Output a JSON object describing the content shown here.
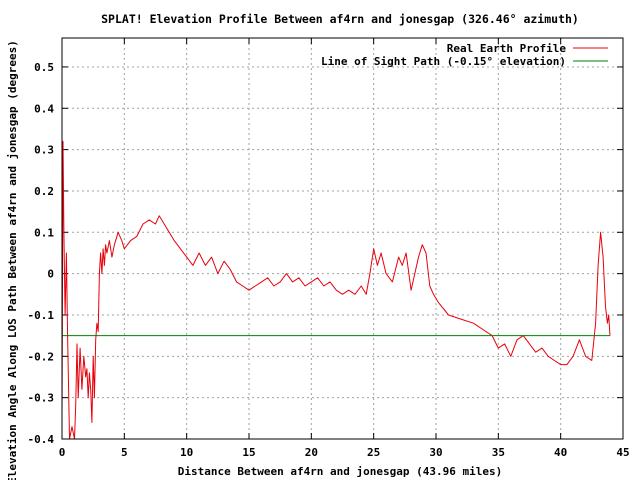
{
  "chart_data": {
    "type": "line",
    "title": "SPLAT! Elevation Profile Between af4rn and jonesgap (326.46° azimuth)",
    "xlabel": "Distance Between af4rn and jonesgap (43.96 miles)",
    "ylabel": "Elevation Angle Along LOS Path Between af4rn and jonesgap (degrees)",
    "xlim": [
      0,
      45
    ],
    "ylim": [
      -0.4,
      0.57
    ],
    "x_ticks": [
      0,
      5,
      10,
      15,
      20,
      25,
      30,
      35,
      40,
      45
    ],
    "y_ticks": [
      -0.4,
      -0.3,
      -0.2,
      -0.1,
      0,
      0.1,
      0.2,
      0.3,
      0.4,
      0.5
    ],
    "x_tick_labels": [
      "0",
      "5",
      "10",
      "15",
      "20",
      "25",
      "30",
      "35",
      "40",
      "45"
    ],
    "y_tick_labels": [
      "-0.4",
      "-0.3",
      "-0.2",
      "-0.1",
      "0",
      "0.1",
      "0.2",
      "0.3",
      "0.4",
      "0.5"
    ],
    "grid": true,
    "legend_position": "top-right",
    "series": [
      {
        "name": "Real Earth Profile",
        "color": "#e8000b",
        "x": [
          0,
          0.08,
          0.15,
          0.25,
          0.35,
          0.45,
          0.6,
          0.8,
          1.0,
          1.1,
          1.2,
          1.3,
          1.45,
          1.6,
          1.75,
          1.9,
          2.0,
          2.1,
          2.2,
          2.3,
          2.4,
          2.5,
          2.6,
          2.7,
          2.8,
          2.9,
          3.0,
          3.1,
          3.2,
          3.3,
          3.4,
          3.5,
          3.6,
          3.8,
          4.0,
          4.2,
          4.5,
          4.8,
          5.0,
          5.5,
          6.0,
          6.5,
          7.0,
          7.5,
          7.8,
          8.2,
          8.6,
          9.0,
          9.5,
          10.0,
          10.5,
          11.0,
          11.5,
          12.0,
          12.5,
          13.0,
          13.5,
          14.0,
          14.5,
          15.0,
          15.5,
          16.0,
          16.5,
          17.0,
          17.5,
          18.0,
          18.5,
          19.0,
          19.5,
          20.0,
          20.5,
          21.0,
          21.5,
          22.0,
          22.5,
          23.0,
          23.5,
          24.0,
          24.4,
          24.7,
          25.0,
          25.3,
          25.6,
          26.0,
          26.5,
          27.0,
          27.3,
          27.6,
          28.0,
          28.3,
          28.6,
          28.9,
          29.2,
          29.5,
          29.8,
          30.2,
          31.0,
          32.0,
          33.0,
          34.0,
          34.5,
          35.0,
          35.5,
          36.0,
          36.5,
          37.0,
          37.5,
          38.0,
          38.5,
          39.0,
          39.5,
          40.0,
          40.5,
          41.0,
          41.5,
          42.0,
          42.5,
          42.8,
          43.0,
          43.2,
          43.4,
          43.6,
          43.75,
          43.85,
          43.96
        ],
        "y": [
          -0.35,
          0.32,
          0.1,
          -0.1,
          0.05,
          -0.15,
          -0.4,
          -0.37,
          -0.4,
          -0.32,
          -0.17,
          -0.3,
          -0.18,
          -0.28,
          -0.2,
          -0.25,
          -0.23,
          -0.3,
          -0.24,
          -0.28,
          -0.36,
          -0.2,
          -0.3,
          -0.16,
          -0.12,
          -0.14,
          0.0,
          0.05,
          0.0,
          0.06,
          0.02,
          0.07,
          0.05,
          0.08,
          0.04,
          0.07,
          0.1,
          0.08,
          0.06,
          0.08,
          0.09,
          0.12,
          0.13,
          0.12,
          0.14,
          0.12,
          0.1,
          0.08,
          0.06,
          0.04,
          0.02,
          0.05,
          0.02,
          0.04,
          0.0,
          0.03,
          0.01,
          -0.02,
          -0.03,
          -0.04,
          -0.03,
          -0.02,
          -0.01,
          -0.03,
          -0.02,
          0.0,
          -0.02,
          -0.01,
          -0.03,
          -0.02,
          -0.01,
          -0.03,
          -0.02,
          -0.04,
          -0.05,
          -0.04,
          -0.05,
          -0.03,
          -0.05,
          0.0,
          0.06,
          0.02,
          0.05,
          0.0,
          -0.02,
          0.04,
          0.02,
          0.05,
          -0.04,
          0.0,
          0.04,
          0.07,
          0.05,
          -0.03,
          -0.05,
          -0.07,
          -0.1,
          -0.11,
          -0.12,
          -0.14,
          -0.15,
          -0.18,
          -0.17,
          -0.2,
          -0.16,
          -0.15,
          -0.17,
          -0.19,
          -0.18,
          -0.2,
          -0.21,
          -0.22,
          -0.22,
          -0.2,
          -0.16,
          -0.2,
          -0.21,
          -0.12,
          0.02,
          0.1,
          0.04,
          -0.08,
          -0.12,
          -0.1,
          -0.15
        ]
      },
      {
        "name": "Line of Sight Path (-0.15° elevation)",
        "color": "#008000",
        "x": [
          0,
          43.96
        ],
        "y": [
          -0.15,
          -0.15
        ]
      }
    ]
  }
}
